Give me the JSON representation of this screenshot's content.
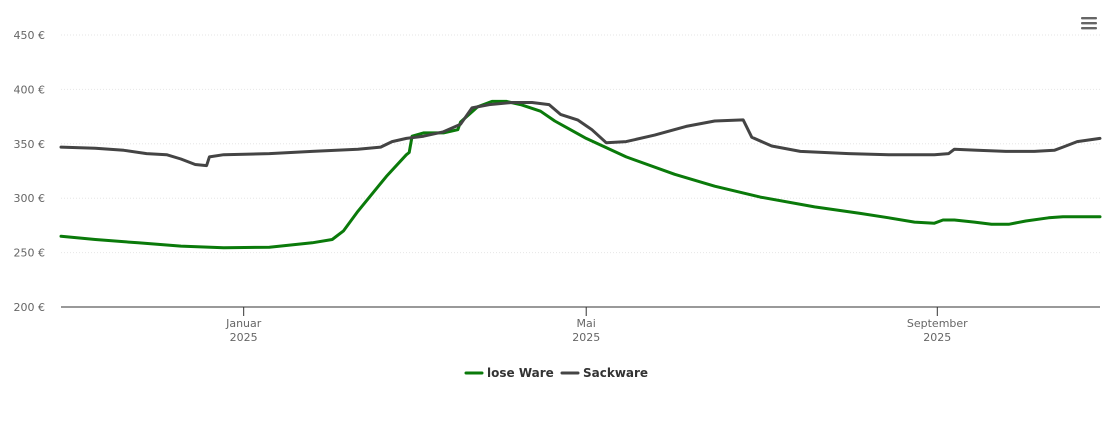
{
  "chart_data": {
    "type": "line",
    "title": "",
    "xlabel": "",
    "ylabel": "",
    "ylim": [
      200,
      450
    ],
    "y_ticks": [
      200,
      250,
      300,
      350,
      400,
      450
    ],
    "y_tick_labels": [
      "200 €",
      "250 €",
      "300 €",
      "350 €",
      "400 €",
      "450 €"
    ],
    "x_range": [
      "2024-10-29",
      "2025-10-28"
    ],
    "x_ticks": [
      {
        "date": "2025-01-01",
        "month": "Januar",
        "year": "2025"
      },
      {
        "date": "2025-05-01",
        "month": "Mai",
        "year": "2025"
      },
      {
        "date": "2025-09-01",
        "month": "September",
        "year": "2025"
      }
    ],
    "grid": true,
    "legend_position": "bottom-center",
    "series": [
      {
        "name": "lose Ware",
        "color": "#0a7a0a",
        "points": [
          [
            "2024-10-29",
            265
          ],
          [
            "2024-11-10",
            262
          ],
          [
            "2024-11-25",
            259
          ],
          [
            "2024-12-10",
            256
          ],
          [
            "2024-12-25",
            254.5
          ],
          [
            "2025-01-10",
            255
          ],
          [
            "2025-01-25",
            259
          ],
          [
            "2025-02-01",
            262
          ],
          [
            "2025-02-05",
            270
          ],
          [
            "2025-02-10",
            288
          ],
          [
            "2025-02-20",
            320
          ],
          [
            "2025-02-27",
            340
          ],
          [
            "2025-02-28",
            342
          ],
          [
            "2025-03-01",
            357
          ],
          [
            "2025-03-05",
            360
          ],
          [
            "2025-03-12",
            360
          ],
          [
            "2025-03-17",
            363
          ],
          [
            "2025-03-18",
            370
          ],
          [
            "2025-03-24",
            384
          ],
          [
            "2025-03-29",
            389
          ],
          [
            "2025-04-03",
            389
          ],
          [
            "2025-04-08",
            386
          ],
          [
            "2025-04-15",
            380
          ],
          [
            "2025-04-20",
            371
          ],
          [
            "2025-05-01",
            355
          ],
          [
            "2025-05-15",
            338
          ],
          [
            "2025-06-01",
            322
          ],
          [
            "2025-06-15",
            311
          ],
          [
            "2025-07-01",
            301
          ],
          [
            "2025-07-20",
            292
          ],
          [
            "2025-08-05",
            286
          ],
          [
            "2025-08-15",
            282
          ],
          [
            "2025-08-24",
            278
          ],
          [
            "2025-08-31",
            277
          ],
          [
            "2025-09-03",
            280
          ],
          [
            "2025-09-07",
            280
          ],
          [
            "2025-09-14",
            278
          ],
          [
            "2025-09-20",
            276
          ],
          [
            "2025-09-26",
            276
          ],
          [
            "2025-10-02",
            279
          ],
          [
            "2025-10-10",
            282
          ],
          [
            "2025-10-15",
            283
          ],
          [
            "2025-10-21",
            283
          ],
          [
            "2025-10-28",
            283
          ]
        ]
      },
      {
        "name": "Sackware",
        "color": "#444444",
        "points": [
          [
            "2024-10-29",
            347
          ],
          [
            "2024-11-10",
            346
          ],
          [
            "2024-11-20",
            344
          ],
          [
            "2024-11-28",
            341
          ],
          [
            "2024-12-05",
            340
          ],
          [
            "2024-12-10",
            336
          ],
          [
            "2024-12-15",
            331
          ],
          [
            "2024-12-19",
            330
          ],
          [
            "2024-12-20",
            338
          ],
          [
            "2024-12-25",
            340
          ],
          [
            "2025-01-10",
            341
          ],
          [
            "2025-01-25",
            343
          ],
          [
            "2025-02-10",
            345
          ],
          [
            "2025-02-18",
            347
          ],
          [
            "2025-02-22",
            352
          ],
          [
            "2025-02-27",
            355
          ],
          [
            "2025-03-05",
            357
          ],
          [
            "2025-03-12",
            361
          ],
          [
            "2025-03-18",
            368
          ],
          [
            "2025-03-22",
            383
          ],
          [
            "2025-03-28",
            386
          ],
          [
            "2025-04-05",
            388
          ],
          [
            "2025-04-12",
            388
          ],
          [
            "2025-04-18",
            386
          ],
          [
            "2025-04-22",
            377
          ],
          [
            "2025-04-28",
            372
          ],
          [
            "2025-05-03",
            363
          ],
          [
            "2025-05-08",
            351
          ],
          [
            "2025-05-15",
            352
          ],
          [
            "2025-05-25",
            358
          ],
          [
            "2025-06-05",
            366
          ],
          [
            "2025-06-15",
            371
          ],
          [
            "2025-06-25",
            372
          ],
          [
            "2025-06-28",
            356
          ],
          [
            "2025-07-05",
            348
          ],
          [
            "2025-07-15",
            343
          ],
          [
            "2025-08-01",
            341
          ],
          [
            "2025-08-15",
            340
          ],
          [
            "2025-08-31",
            340
          ],
          [
            "2025-09-05",
            341
          ],
          [
            "2025-09-07",
            345
          ],
          [
            "2025-09-15",
            344
          ],
          [
            "2025-09-25",
            343
          ],
          [
            "2025-10-05",
            343
          ],
          [
            "2025-10-12",
            344
          ],
          [
            "2025-10-15",
            347
          ],
          [
            "2025-10-20",
            352
          ],
          [
            "2025-10-28",
            355
          ]
        ]
      }
    ]
  },
  "menu": {
    "icon": "hamburger-menu-icon"
  }
}
